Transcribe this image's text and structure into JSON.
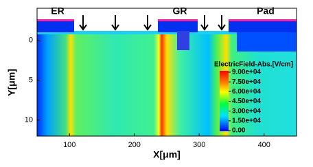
{
  "chart_data": {
    "type": "heatmap",
    "x_label": "X[μm]",
    "y_label": "Y[μm]",
    "xlim": [
      50,
      450
    ],
    "xticks": [
      100,
      200,
      300,
      400
    ],
    "ylim": [
      -4,
      12
    ],
    "yticks": [
      0,
      5,
      10
    ],
    "y_inverted": true,
    "annotations": [
      "ER",
      "GR",
      "Pad"
    ],
    "colorbar": {
      "title": "ElectricField-Abs.[V/cm]",
      "range": [
        0,
        90000
      ],
      "ticks": [
        {
          "value": 90000,
          "label": "9.00e+04"
        },
        {
          "value": 75000,
          "label": "7.50e+04"
        },
        {
          "value": 60000,
          "label": "6.00e+04"
        },
        {
          "value": 45000,
          "label": "4.50e+04"
        },
        {
          "value": 30000,
          "label": "3.00e+04"
        },
        {
          "value": 15000,
          "label": "1.50e+04"
        },
        {
          "value": 0,
          "label": "0.00"
        }
      ]
    }
  }
}
